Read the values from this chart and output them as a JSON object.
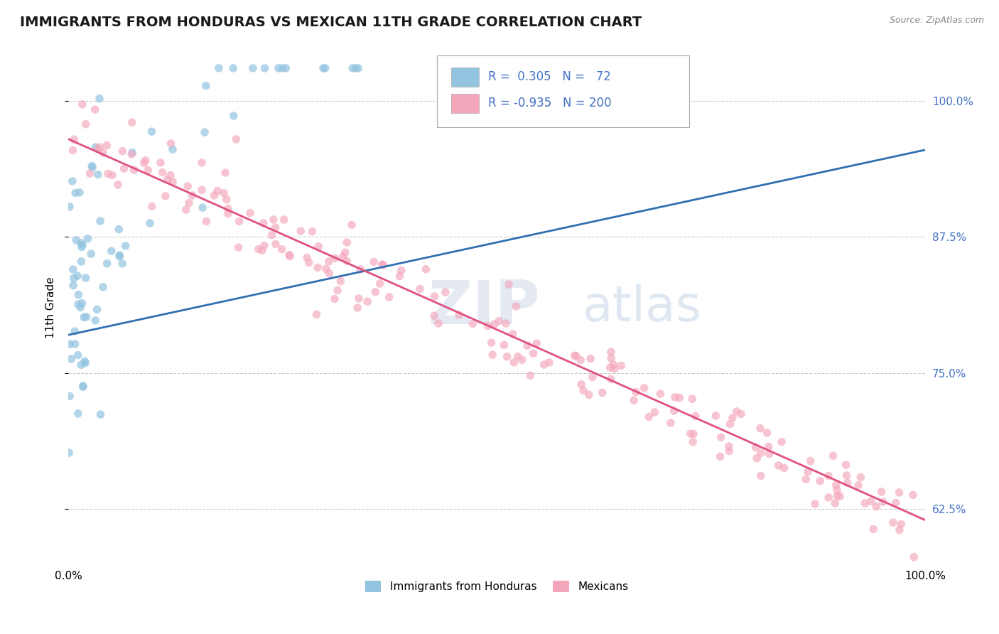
{
  "title": "IMMIGRANTS FROM HONDURAS VS MEXICAN 11TH GRADE CORRELATION CHART",
  "source_text": "Source: ZipAtlas.com",
  "ylabel": "11th Grade",
  "xlim": [
    0.0,
    1.0
  ],
  "ylim": [
    0.575,
    1.045
  ],
  "yticks": [
    0.625,
    0.75,
    0.875,
    1.0
  ],
  "ytick_labels": [
    "62.5%",
    "75.0%",
    "87.5%",
    "100.0%"
  ],
  "blue_R": 0.305,
  "blue_N": 72,
  "pink_R": -0.935,
  "pink_N": 200,
  "blue_color": "#93c4e0",
  "pink_color": "#f4a7bb",
  "blue_line_color": "#3070b0",
  "pink_line_color": "#e05080",
  "legend_label_blue": "Immigrants from Honduras",
  "legend_label_pink": "Mexicans",
  "background_color": "#ffffff",
  "title_color": "#1a1a1a",
  "title_fontsize": 14,
  "axis_label_fontsize": 11,
  "tick_fontsize": 11,
  "right_tick_color": "#4472c4",
  "grid_color": "#cccccc"
}
